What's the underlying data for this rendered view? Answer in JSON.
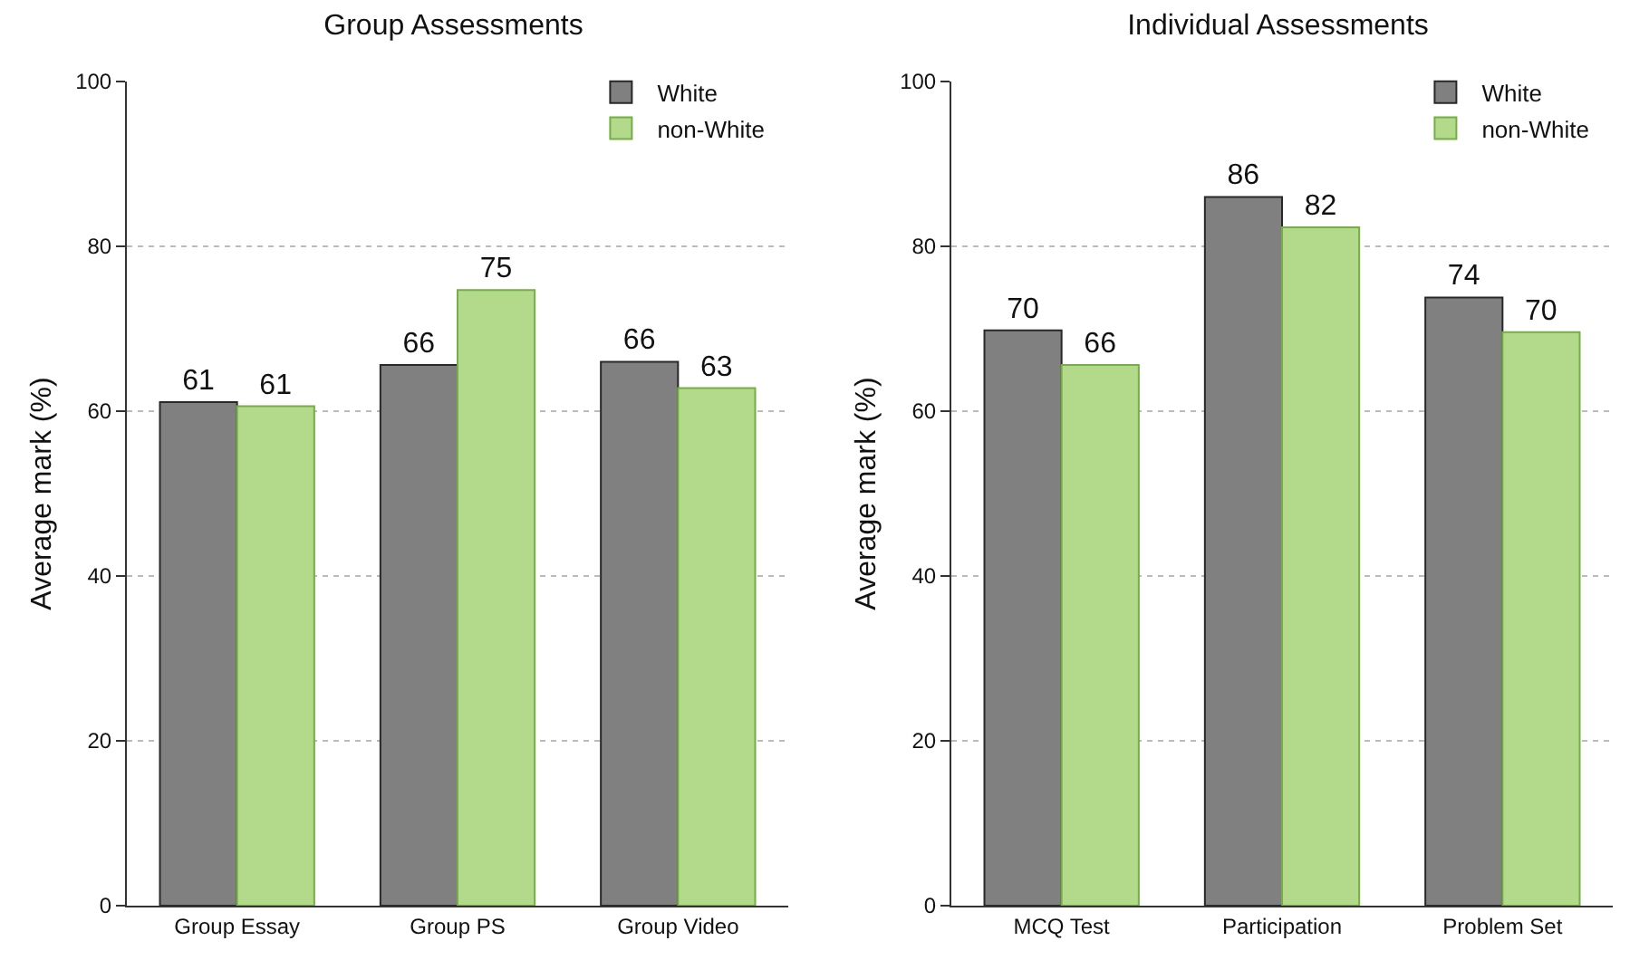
{
  "chart_data": [
    {
      "type": "bar",
      "title": "Group Assessments",
      "ylabel": "Average mark (%)",
      "categories": [
        "Group Essay",
        "Group PS",
        "Group Video"
      ],
      "series": [
        {
          "name": "White",
          "color": "#808080",
          "values": [
            61.1,
            65.6,
            66.0
          ],
          "value_labels": [
            "61",
            "66",
            "66"
          ]
        },
        {
          "name": "non-White",
          "color": "#b3d98a",
          "values": [
            60.6,
            74.7,
            62.8
          ],
          "value_labels": [
            "61",
            "75",
            "63"
          ]
        }
      ],
      "ylim": [
        0,
        100
      ],
      "yticks": [
        0,
        20,
        40,
        60,
        80,
        100
      ],
      "grid": "y",
      "legend": "top right"
    },
    {
      "type": "bar",
      "title": "Individual Assessments",
      "ylabel": "Average mark (%)",
      "categories": [
        "MCQ Test",
        "Participation",
        "Problem Set"
      ],
      "series": [
        {
          "name": "White",
          "color": "#808080",
          "values": [
            69.8,
            86.0,
            73.8
          ],
          "value_labels": [
            "70",
            "86",
            "74"
          ]
        },
        {
          "name": "non-White",
          "color": "#b3d98a",
          "values": [
            65.6,
            82.3,
            69.6
          ],
          "value_labels": [
            "66",
            "82",
            "70"
          ]
        }
      ],
      "ylim": [
        0,
        100
      ],
      "yticks": [
        0,
        20,
        40,
        60,
        80,
        100
      ],
      "grid": "y",
      "legend": "top right"
    }
  ]
}
